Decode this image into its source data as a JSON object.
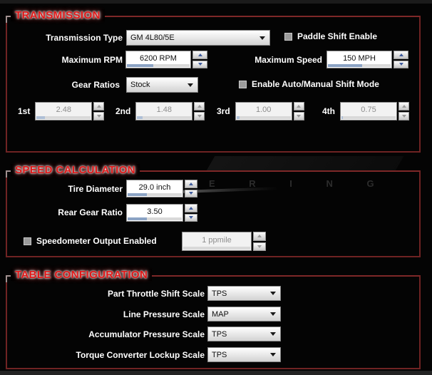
{
  "watermark": {
    "text": "E R I N G"
  },
  "sections": {
    "transmission": {
      "title": "TRANSMISSION",
      "transmission_type": {
        "label": "Transmission Type",
        "value": "GM 4L80/5E"
      },
      "paddle_shift": {
        "label": "Paddle Shift Enable",
        "checked": false
      },
      "max_rpm": {
        "label": "Maximum RPM",
        "value": "6200 RPM",
        "progress": 42
      },
      "max_speed": {
        "label": "Maximum Speed",
        "value": "150 MPH",
        "progress": 55
      },
      "gear_ratios": {
        "label": "Gear Ratios",
        "value": "Stock"
      },
      "auto_manual_shift": {
        "label": "Enable Auto/Manual Shift Mode",
        "checked": false
      },
      "gears": [
        {
          "label": "1st",
          "value": "2.48",
          "progress": 15
        },
        {
          "label": "2nd",
          "value": "1.48",
          "progress": 10
        },
        {
          "label": "3rd",
          "value": "1.00",
          "progress": 6
        },
        {
          "label": "4th",
          "value": "0.75",
          "progress": 3
        }
      ]
    },
    "speed_calculation": {
      "title": "SPEED CALCULATION",
      "tire_diameter": {
        "label": "Tire Diameter",
        "value": "29.0 inch",
        "progress": 36
      },
      "rear_gear_ratio": {
        "label": "Rear Gear Ratio",
        "value": "3.50",
        "progress": 36
      },
      "speedometer_output": {
        "label": "Speedometer Output Enabled",
        "checked": false,
        "value": "1 ppmile",
        "progress": 0
      }
    },
    "table_configuration": {
      "title": "TABLE CONFIGURATION",
      "rows": [
        {
          "label": "Part Throttle Shift Scale",
          "value": "TPS"
        },
        {
          "label": "Line Pressure Scale",
          "value": "MAP"
        },
        {
          "label": "Accumulator Pressure Scale",
          "value": "TPS"
        },
        {
          "label": "Torque Converter Lockup Scale",
          "value": "TPS"
        }
      ]
    }
  },
  "colors": {
    "accent_red": "#e01818",
    "group_border": "#6f2323",
    "progress_fill": "#8ba3c4",
    "spin_arrow_blue": "#3f5c9e"
  }
}
